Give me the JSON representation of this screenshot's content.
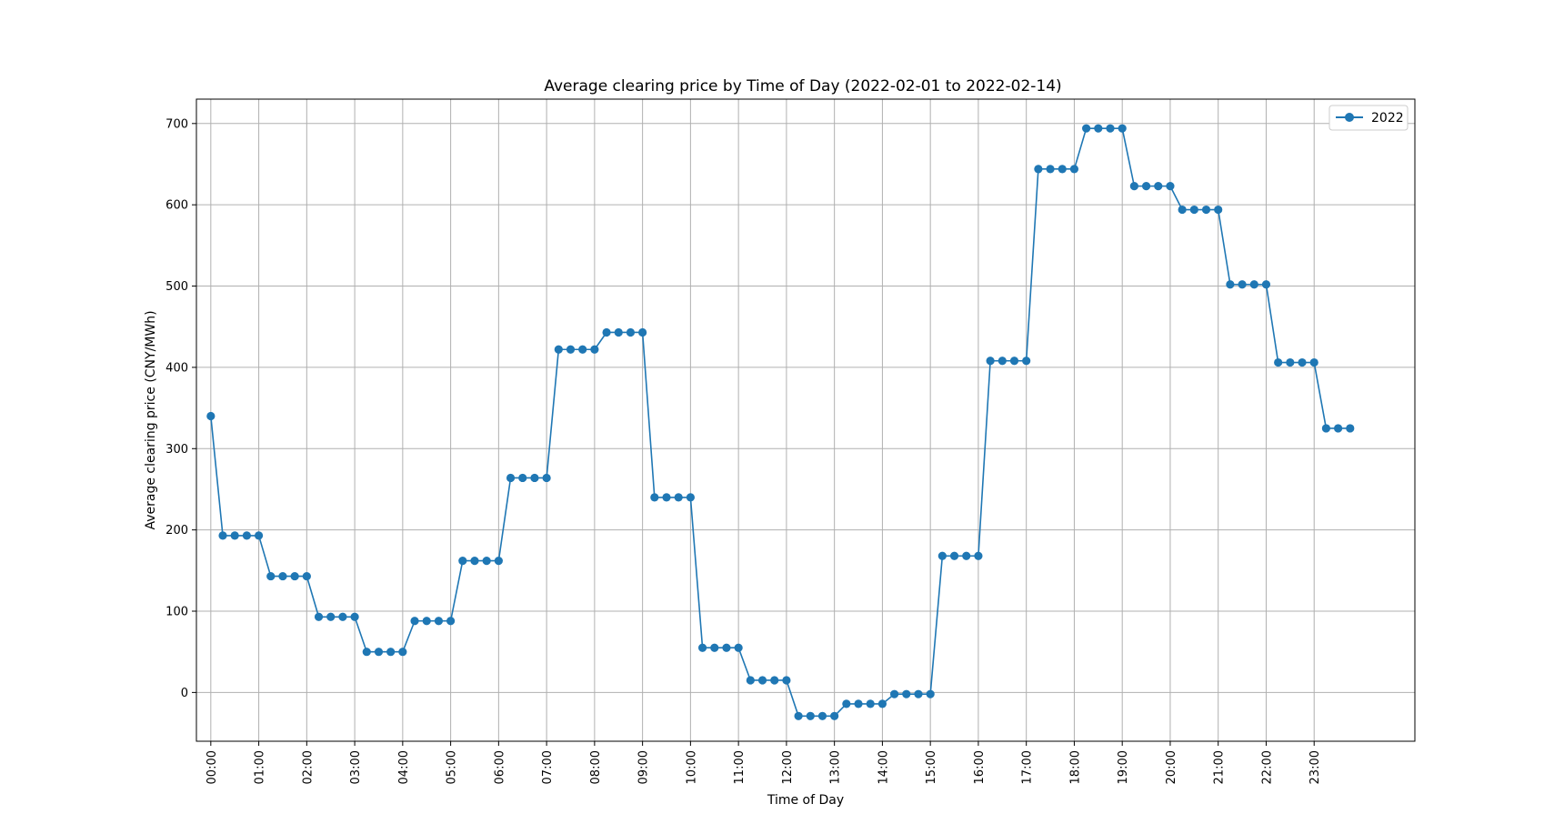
{
  "chart_data": {
    "type": "line",
    "title": "Average clearing price by Time of Day (2022-02-01 to 2022-02-14)",
    "xlabel": "Time of Day",
    "ylabel": "Average clearing price (CNY/MWh)",
    "ylim": [
      -60,
      730
    ],
    "yticks": [
      0,
      100,
      200,
      300,
      400,
      500,
      600,
      700
    ],
    "xticks": [
      "00:00",
      "01:00",
      "02:00",
      "03:00",
      "04:00",
      "05:00",
      "06:00",
      "07:00",
      "08:00",
      "09:00",
      "10:00",
      "11:00",
      "12:00",
      "13:00",
      "14:00",
      "15:00",
      "16:00",
      "17:00",
      "18:00",
      "19:00",
      "20:00",
      "21:00",
      "22:00",
      "23:00"
    ],
    "x_interval_minutes": 15,
    "xlim_hours": [
      -0.3,
      25.1
    ],
    "grid": true,
    "legend_position": "top-right",
    "series": [
      {
        "name": "2022",
        "color": "#1f77b4",
        "marker": "circle",
        "values": [
          340,
          193,
          193,
          193,
          193,
          143,
          143,
          143,
          143,
          93,
          93,
          93,
          93,
          50,
          50,
          50,
          50,
          88,
          88,
          88,
          88,
          162,
          162,
          162,
          162,
          264,
          264,
          264,
          264,
          422,
          422,
          422,
          422,
          443,
          443,
          443,
          443,
          240,
          240,
          240,
          240,
          55,
          55,
          55,
          55,
          15,
          15,
          15,
          15,
          -29,
          -29,
          -29,
          -29,
          -14,
          -14,
          -14,
          -14,
          -2,
          -2,
          -2,
          -2,
          168,
          168,
          168,
          168,
          408,
          408,
          408,
          408,
          644,
          644,
          644,
          644,
          694,
          694,
          694,
          694,
          623,
          623,
          623,
          623,
          594,
          594,
          594,
          594,
          502,
          502,
          502,
          502,
          406,
          406,
          406,
          406,
          325,
          325,
          325
        ]
      }
    ]
  }
}
